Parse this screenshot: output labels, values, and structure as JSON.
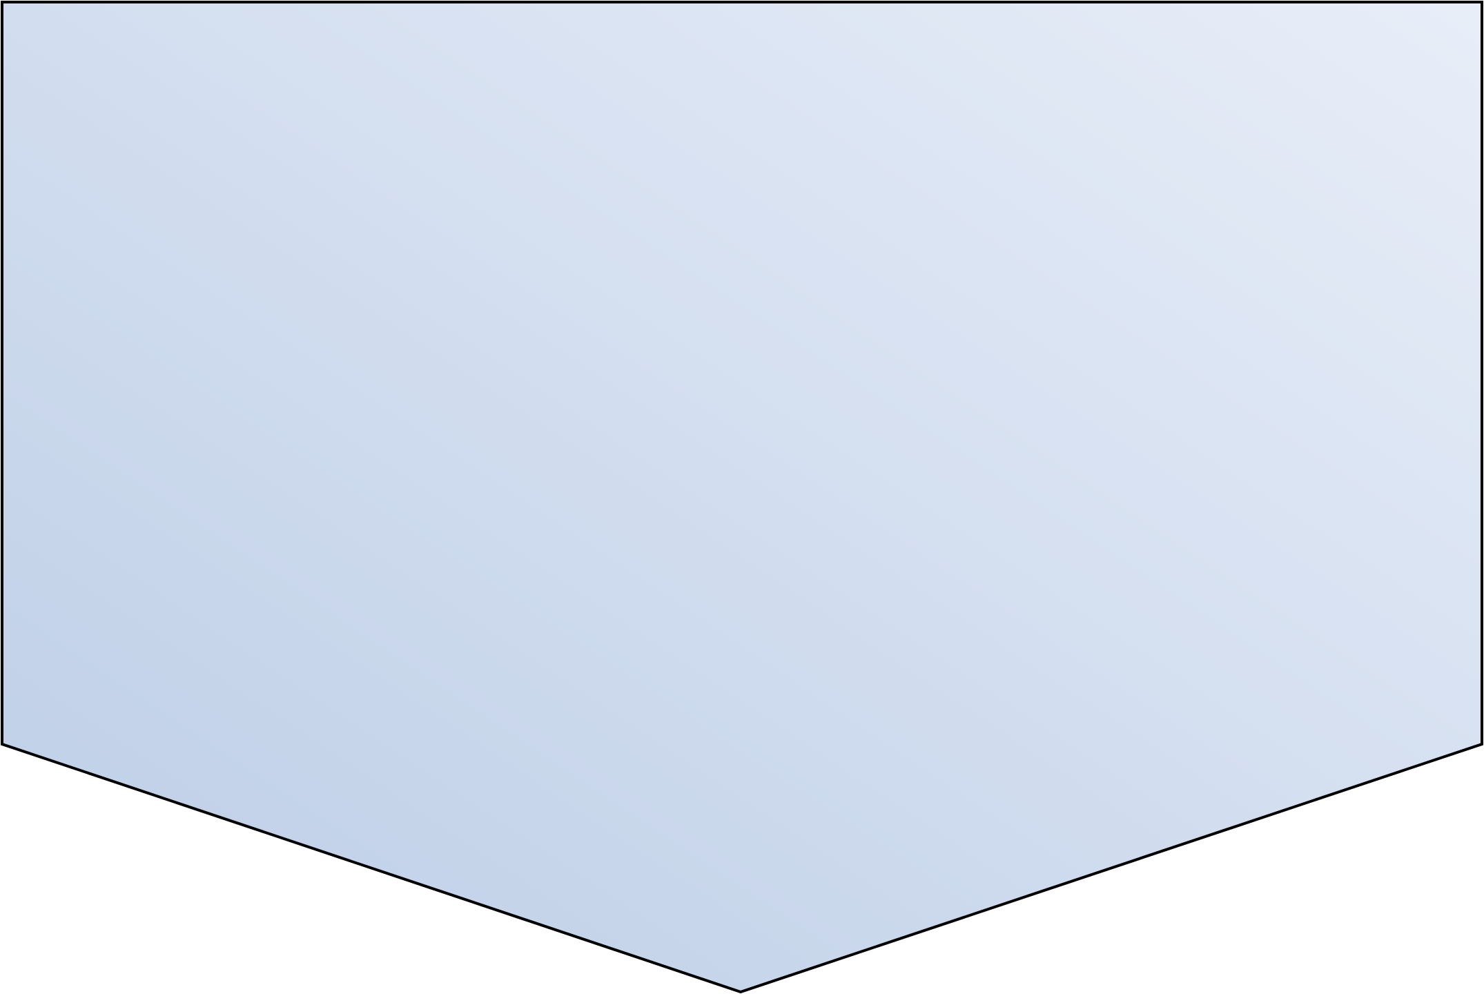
{
  "shape": {
    "name": "offpage-connector",
    "fill_start_color": "#bccde6",
    "fill_end_color": "#e8eef8",
    "stroke_color": "#000000"
  }
}
